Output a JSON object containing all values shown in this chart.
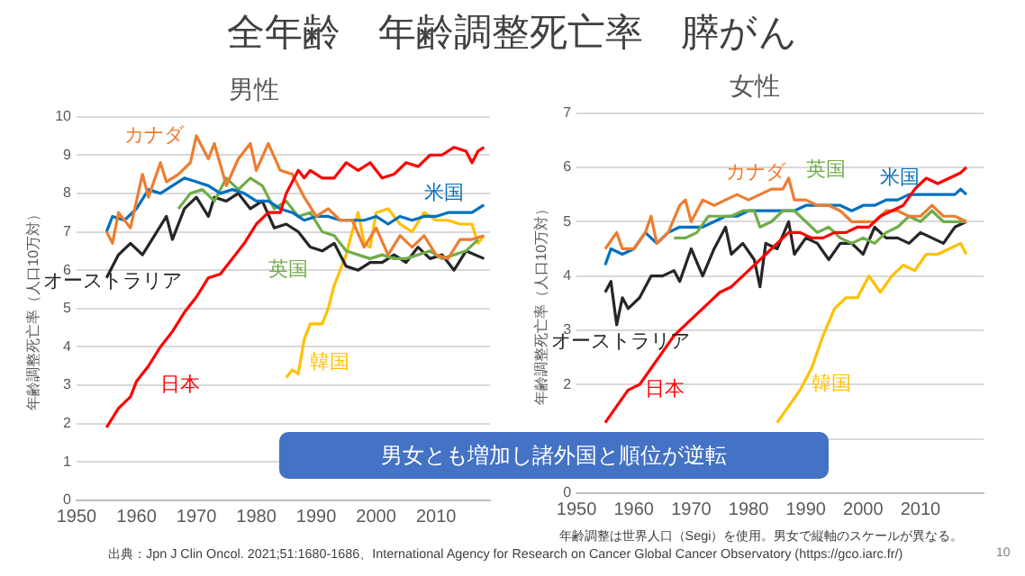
{
  "chart_data": [
    {
      "type": "line",
      "title": "男性",
      "ylabel": "年齢調整死亡率（人口10万対）",
      "xlim": [
        1950,
        2019
      ],
      "xticks": [
        1950,
        1960,
        1970,
        1980,
        1990,
        2000,
        2010
      ],
      "ylim": [
        0,
        10
      ],
      "yticks": [
        0,
        1,
        2,
        3,
        4,
        5,
        6,
        7,
        8,
        9,
        10
      ],
      "grid": "y",
      "legend": false,
      "annotations": [
        "全年齢　年齢調整死亡率　膵がん",
        "男女とも増加し諸外国と順位が逆転",
        "出典：Jpn J Clin Oncol. 2021;51:1680-1686、International Agency for Research on Cancer Global Cancer Observatory (https://gco.iarc.fr/)",
        "10"
      ],
      "series": [
        {
          "name": "日本",
          "color": "#ff0000",
          "x": [
            1955,
            1957,
            1959,
            1960,
            1962,
            1964,
            1966,
            1968,
            1970,
            1972,
            1974,
            1976,
            1978,
            1980,
            1982,
            1984,
            1985,
            1987,
            1988,
            1989,
            1991,
            1993,
            1995,
            1997,
            1999,
            2001,
            2003,
            2005,
            2007,
            2009,
            2011,
            2013,
            2015,
            2016,
            2017,
            2018
          ],
          "values": [
            1.9,
            2.4,
            2.7,
            3.1,
            3.5,
            4.0,
            4.4,
            4.9,
            5.3,
            5.8,
            5.9,
            6.3,
            6.7,
            7.2,
            7.5,
            7.5,
            8.0,
            8.6,
            8.4,
            8.6,
            8.4,
            8.4,
            8.8,
            8.6,
            8.8,
            8.4,
            8.5,
            8.8,
            8.7,
            9.0,
            9.0,
            9.2,
            9.1,
            8.8,
            9.1,
            9.2
          ]
        },
        {
          "name": "カナダ",
          "color": "#ed7d31",
          "x": [
            1955,
            1956,
            1957,
            1959,
            1961,
            1962,
            1964,
            1965,
            1967,
            1969,
            1970,
            1972,
            1973,
            1975,
            1977,
            1979,
            1980,
            1982,
            1984,
            1986,
            1988,
            1990,
            1992,
            1994,
            1996,
            1998,
            2000,
            2002,
            2004,
            2006,
            2008,
            2010,
            2012,
            2014,
            2016,
            2018
          ],
          "values": [
            7.0,
            6.7,
            7.5,
            7.1,
            8.5,
            7.9,
            8.8,
            8.3,
            8.5,
            8.8,
            9.5,
            8.9,
            9.3,
            8.2,
            8.9,
            9.3,
            8.6,
            9.3,
            8.6,
            8.5,
            7.9,
            7.4,
            7.6,
            7.3,
            7.3,
            6.6,
            7.1,
            6.4,
            6.9,
            6.6,
            6.9,
            6.4,
            6.3,
            6.8,
            6.8,
            6.9
          ]
        },
        {
          "name": "米国",
          "color": "#0070c0",
          "x": [
            1955,
            1956,
            1958,
            1960,
            1962,
            1964,
            1966,
            1968,
            1970,
            1972,
            1974,
            1976,
            1978,
            1980,
            1982,
            1984,
            1986,
            1988,
            1990,
            1992,
            1994,
            1996,
            1998,
            2000,
            2002,
            2004,
            2006,
            2008,
            2010,
            2012,
            2014,
            2016,
            2018
          ],
          "values": [
            7.0,
            7.4,
            7.3,
            7.6,
            8.1,
            8.0,
            8.2,
            8.4,
            8.3,
            8.2,
            8.0,
            8.1,
            8.0,
            7.8,
            7.8,
            7.6,
            7.5,
            7.3,
            7.4,
            7.4,
            7.3,
            7.3,
            7.3,
            7.4,
            7.2,
            7.4,
            7.3,
            7.4,
            7.4,
            7.5,
            7.5,
            7.5,
            7.7
          ]
        },
        {
          "name": "英国",
          "color": "#70ad47",
          "x": [
            1967,
            1969,
            1971,
            1973,
            1975,
            1977,
            1979,
            1981,
            1983,
            1985,
            1987,
            1989,
            1991,
            1993,
            1995,
            1997,
            1999,
            2001,
            2003,
            2005,
            2007,
            2009,
            2011,
            2013,
            2015,
            2017
          ],
          "values": [
            7.6,
            8.0,
            8.1,
            7.8,
            8.4,
            8.1,
            8.4,
            8.2,
            7.6,
            7.8,
            7.4,
            7.5,
            7.0,
            6.9,
            6.5,
            6.4,
            6.3,
            6.4,
            6.3,
            6.3,
            6.4,
            6.5,
            6.3,
            6.4,
            6.5,
            6.8
          ]
        },
        {
          "name": "オーストラリア",
          "color": "#262626",
          "x": [
            1955,
            1957,
            1959,
            1961,
            1963,
            1965,
            1966,
            1968,
            1970,
            1972,
            1973,
            1975,
            1977,
            1979,
            1981,
            1983,
            1985,
            1987,
            1989,
            1991,
            1993,
            1995,
            1997,
            1999,
            2001,
            2003,
            2005,
            2007,
            2009,
            2011,
            2013,
            2015,
            2018
          ],
          "values": [
            5.8,
            6.4,
            6.7,
            6.4,
            6.9,
            7.4,
            6.8,
            7.6,
            7.9,
            7.4,
            7.9,
            7.8,
            8.0,
            7.6,
            7.8,
            7.1,
            7.2,
            7.0,
            6.6,
            6.5,
            6.7,
            6.1,
            6.0,
            6.2,
            6.2,
            6.4,
            6.2,
            6.6,
            6.3,
            6.4,
            6.0,
            6.5,
            6.3
          ]
        },
        {
          "name": "韓国",
          "color": "#ffc000",
          "x": [
            1985,
            1986,
            1987,
            1988,
            1989,
            1991,
            1992,
            1993,
            1995,
            1996,
            1997,
            1998,
            1999,
            2000,
            2002,
            2004,
            2006,
            2008,
            2010,
            2012,
            2014,
            2016,
            2017,
            2018
          ],
          "values": [
            3.2,
            3.4,
            3.3,
            4.2,
            4.6,
            4.6,
            5.0,
            5.6,
            6.4,
            7.0,
            7.5,
            6.7,
            6.6,
            7.5,
            7.6,
            7.2,
            7.0,
            7.5,
            7.3,
            7.3,
            7.2,
            7.2,
            6.7,
            6.9
          ]
        }
      ]
    },
    {
      "type": "line",
      "title": "女性",
      "ylabel": "年齢調整死亡率（人口10万対）",
      "xlim": [
        1950,
        2021
      ],
      "xticks": [
        1950,
        1960,
        1970,
        1980,
        1990,
        2000,
        2010
      ],
      "ylim": [
        0,
        7
      ],
      "yticks": [
        0,
        {
          "value": 1,
          "label": null
        },
        2,
        3,
        4,
        5,
        6,
        7
      ],
      "grid": "y",
      "legend": false,
      "annotations": [
        "年齢調整は世界人口（Segi）を使用。男女で縦軸のスケールが異なる。"
      ],
      "series": [
        {
          "name": "日本",
          "color": "#ff0000",
          "x": [
            1955,
            1957,
            1959,
            1961,
            1963,
            1965,
            1967,
            1969,
            1971,
            1973,
            1975,
            1977,
            1979,
            1981,
            1983,
            1985,
            1987,
            1989,
            1991,
            1993,
            1995,
            1997,
            1999,
            2001,
            2003,
            2005,
            2007,
            2009,
            2011,
            2013,
            2015,
            2017,
            2018
          ],
          "values": [
            1.3,
            1.6,
            1.9,
            2.0,
            2.3,
            2.6,
            2.9,
            3.1,
            3.3,
            3.5,
            3.7,
            3.8,
            4.0,
            4.2,
            4.4,
            4.6,
            4.8,
            4.8,
            4.7,
            4.7,
            4.8,
            4.8,
            4.9,
            4.9,
            5.1,
            5.2,
            5.3,
            5.6,
            5.8,
            5.7,
            5.8,
            5.9,
            6.0
          ]
        },
        {
          "name": "カナダ",
          "color": "#ed7d31",
          "x": [
            1955,
            1957,
            1958,
            1960,
            1962,
            1963,
            1964,
            1966,
            1968,
            1969,
            1970,
            1972,
            1974,
            1976,
            1978,
            1980,
            1982,
            1984,
            1986,
            1987,
            1988,
            1990,
            1992,
            1994,
            1996,
            1998,
            2000,
            2002,
            2004,
            2006,
            2008,
            2010,
            2012,
            2014,
            2016,
            2018
          ],
          "values": [
            4.5,
            4.8,
            4.5,
            4.5,
            4.8,
            5.1,
            4.6,
            4.8,
            5.3,
            5.4,
            5.0,
            5.4,
            5.3,
            5.4,
            5.5,
            5.4,
            5.5,
            5.6,
            5.6,
            5.8,
            5.4,
            5.4,
            5.3,
            5.3,
            5.2,
            5.0,
            5.0,
            5.0,
            5.2,
            5.2,
            5.1,
            5.1,
            5.3,
            5.1,
            5.1,
            5.0
          ]
        },
        {
          "name": "英国",
          "color": "#70ad47",
          "x": [
            1967,
            1969,
            1971,
            1973,
            1975,
            1977,
            1979,
            1981,
            1982,
            1984,
            1986,
            1988,
            1990,
            1992,
            1994,
            1996,
            1998,
            2000,
            2002,
            2004,
            2006,
            2008,
            2010,
            2012,
            2014,
            2016,
            2018
          ],
          "values": [
            4.7,
            4.7,
            4.8,
            5.1,
            5.1,
            5.1,
            5.2,
            5.2,
            4.9,
            5.0,
            5.2,
            5.2,
            5.0,
            4.8,
            4.9,
            4.7,
            4.6,
            4.7,
            4.6,
            4.8,
            4.9,
            5.1,
            5.0,
            5.2,
            5.0,
            5.0,
            5.0
          ]
        },
        {
          "name": "米国",
          "color": "#0070c0",
          "x": [
            1955,
            1956,
            1958,
            1960,
            1962,
            1964,
            1966,
            1968,
            1970,
            1972,
            1974,
            1976,
            1978,
            1980,
            1982,
            1984,
            1986,
            1988,
            1990,
            1992,
            1994,
            1996,
            1998,
            2000,
            2002,
            2004,
            2006,
            2008,
            2010,
            2012,
            2014,
            2016,
            2017,
            2018
          ],
          "values": [
            4.2,
            4.5,
            4.4,
            4.5,
            4.8,
            4.6,
            4.8,
            4.9,
            4.9,
            4.9,
            5.0,
            5.1,
            5.1,
            5.2,
            5.2,
            5.2,
            5.2,
            5.2,
            5.3,
            5.3,
            5.3,
            5.3,
            5.2,
            5.3,
            5.3,
            5.4,
            5.4,
            5.5,
            5.5,
            5.5,
            5.5,
            5.5,
            5.6,
            5.5
          ]
        },
        {
          "name": "オーストラリア",
          "color": "#262626",
          "x": [
            1955,
            1956,
            1957,
            1958,
            1959,
            1961,
            1963,
            1965,
            1967,
            1968,
            1970,
            1972,
            1974,
            1976,
            1977,
            1979,
            1981,
            1982,
            1983,
            1985,
            1987,
            1988,
            1990,
            1992,
            1994,
            1996,
            1998,
            2000,
            2002,
            2004,
            2006,
            2008,
            2010,
            2012,
            2014,
            2016,
            2018
          ],
          "values": [
            3.7,
            3.9,
            3.1,
            3.6,
            3.4,
            3.6,
            4.0,
            4.0,
            4.1,
            3.9,
            4.5,
            4.0,
            4.5,
            4.9,
            4.4,
            4.6,
            4.3,
            3.8,
            4.6,
            4.5,
            5.0,
            4.4,
            4.7,
            4.6,
            4.3,
            4.6,
            4.6,
            4.4,
            4.9,
            4.7,
            4.7,
            4.6,
            4.8,
            4.7,
            4.6,
            4.9,
            5.0
          ]
        },
        {
          "name": "韓国",
          "color": "#ffc000",
          "x": [
            1985,
            1987,
            1989,
            1991,
            1993,
            1995,
            1997,
            1999,
            2001,
            2003,
            2005,
            2007,
            2009,
            2011,
            2013,
            2015,
            2017,
            2018
          ],
          "values": [
            1.3,
            1.6,
            1.9,
            2.3,
            2.9,
            3.4,
            3.6,
            3.6,
            4.0,
            3.7,
            4.0,
            4.2,
            4.1,
            4.4,
            4.4,
            4.5,
            4.6,
            4.4
          ]
        }
      ]
    }
  ]
}
